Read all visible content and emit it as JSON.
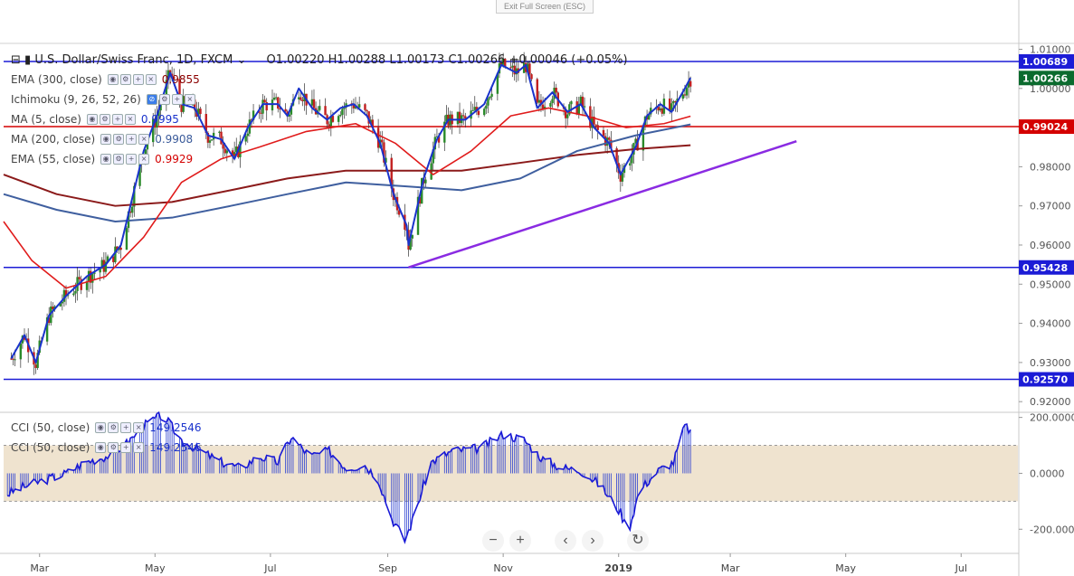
{
  "ui": {
    "exit_fullscreen": "Exit Full Screen (ESC)",
    "symbol": "U.S. Dollar/Swiss Franc, 1D, FXCM",
    "ohlc": {
      "o": "O1.00220",
      "h": "H1.00288",
      "l": "L1.00173",
      "c": "C1.00266",
      "chg": "+0.00046 (+0.05%)"
    },
    "zoom_out": "−",
    "zoom_in": "+",
    "scroll_left": "‹",
    "scroll_right": "›",
    "reset": "↻"
  },
  "indicators": [
    {
      "label": "EMA (300, close)",
      "value": "0.9855",
      "color": "#8b0000"
    },
    {
      "label": "Ichimoku (9, 26, 52, 26)",
      "value": "",
      "color": "#444444"
    },
    {
      "label": "MA (5, close)",
      "value": "0.9995",
      "color": "#1a33cc"
    },
    {
      "label": "MA (200, close)",
      "value": "0.9908",
      "color": "#3a5a9a"
    },
    {
      "label": "EMA (55, close)",
      "value": "0.9929",
      "color": "#d40000"
    }
  ],
  "cci_labels": [
    {
      "label": "CCI (50, close)",
      "value": "149.2546"
    },
    {
      "label": "CCI (50, close)",
      "value": "149.2546"
    }
  ],
  "chart_data": {
    "type": "candlestick",
    "price_axis": {
      "ylim": [
        0.9175,
        1.0115
      ],
      "ticks": [
        "1.01000",
        "1.00000",
        "0.99000",
        "0.98000",
        "0.97000",
        "0.96000",
        "0.95000",
        "0.94000",
        "0.93000",
        "0.92000"
      ]
    },
    "x_axis": {
      "labels": [
        "Mar",
        "May",
        "Jul",
        "Sep",
        "Nov",
        "2019",
        "Mar",
        "May",
        "Jul"
      ]
    },
    "price_labels": [
      {
        "value": 1.00689,
        "text": "1.00689",
        "color": "#1c1cd6"
      },
      {
        "value": 1.00266,
        "text": "1.00266",
        "color": "#0b6b2e"
      },
      {
        "value": 0.99024,
        "text": "0.99024",
        "color": "#d40000"
      },
      {
        "value": 0.95428,
        "text": "0.95428",
        "color": "#1c1cd6"
      },
      {
        "value": 0.9257,
        "text": "0.92570",
        "color": "#1c1cd6"
      }
    ],
    "horizontal_lines": [
      {
        "value": 1.00689,
        "color": "#1c1cd6"
      },
      {
        "value": 0.99024,
        "color": "#d40000"
      },
      {
        "value": 0.95428,
        "color": "#1c1cd6"
      },
      {
        "value": 0.9257,
        "color": "#1c1cd6"
      }
    ],
    "trendline": {
      "from": {
        "date": "2018-09-12",
        "price": 0.9543
      },
      "to": {
        "date": "2019-04-05",
        "price": 0.9865
      },
      "color": "#8a2be2"
    },
    "close_points": [
      [
        "2018-02-14",
        0.931
      ],
      [
        "2018-02-21",
        0.937
      ],
      [
        "2018-02-27",
        0.93
      ],
      [
        "2018-03-06",
        0.942
      ],
      [
        "2018-03-15",
        0.947
      ],
      [
        "2018-03-26",
        0.952
      ],
      [
        "2018-04-05",
        0.955
      ],
      [
        "2018-04-13",
        0.96
      ],
      [
        "2018-04-19",
        0.972
      ],
      [
        "2018-04-25",
        0.984
      ],
      [
        "2018-05-02",
        0.993
      ],
      [
        "2018-05-09",
        1.004
      ],
      [
        "2018-05-15",
        0.996
      ],
      [
        "2018-05-22",
        0.995
      ],
      [
        "2018-05-29",
        0.988
      ],
      [
        "2018-06-05",
        0.987
      ],
      [
        "2018-06-12",
        0.982
      ],
      [
        "2018-06-19",
        0.99
      ],
      [
        "2018-06-27",
        0.996
      ],
      [
        "2018-07-05",
        0.996
      ],
      [
        "2018-07-10",
        0.993
      ],
      [
        "2018-07-16",
        1.0
      ],
      [
        "2018-07-23",
        0.995
      ],
      [
        "2018-07-31",
        0.992
      ],
      [
        "2018-08-07",
        0.995
      ],
      [
        "2018-08-14",
        0.996
      ],
      [
        "2018-08-21",
        0.993
      ],
      [
        "2018-08-28",
        0.986
      ],
      [
        "2018-09-04",
        0.973
      ],
      [
        "2018-09-11",
        0.965
      ],
      [
        "2018-09-12",
        0.96
      ],
      [
        "2018-09-20",
        0.977
      ],
      [
        "2018-09-27",
        0.987
      ],
      [
        "2018-10-03",
        0.992
      ],
      [
        "2018-10-12",
        0.992
      ],
      [
        "2018-10-22",
        0.996
      ],
      [
        "2018-10-31",
        1.006
      ],
      [
        "2018-11-08",
        1.004
      ],
      [
        "2018-11-13",
        1.006
      ],
      [
        "2018-11-19",
        0.995
      ],
      [
        "2018-11-27",
        0.999
      ],
      [
        "2018-12-05",
        0.994
      ],
      [
        "2018-12-12",
        0.996
      ],
      [
        "2018-12-19",
        0.99
      ],
      [
        "2018-12-27",
        0.986
      ],
      [
        "2019-01-02",
        0.978
      ],
      [
        "2019-01-10",
        0.985
      ],
      [
        "2019-01-16",
        0.993
      ],
      [
        "2019-01-23",
        0.996
      ],
      [
        "2019-01-29",
        0.994
      ],
      [
        "2019-02-05",
        1.0
      ],
      [
        "2019-02-08",
        1.0027
      ]
    ],
    "ema55": [
      [
        "2018-02-10",
        0.966
      ],
      [
        "2018-02-25",
        0.956
      ],
      [
        "2018-03-15",
        0.949
      ],
      [
        "2018-04-05",
        0.952
      ],
      [
        "2018-04-25",
        0.962
      ],
      [
        "2018-05-15",
        0.976
      ],
      [
        "2018-06-05",
        0.982
      ],
      [
        "2018-06-25",
        0.985
      ],
      [
        "2018-07-20",
        0.989
      ],
      [
        "2018-08-15",
        0.991
      ],
      [
        "2018-09-05",
        0.986
      ],
      [
        "2018-09-25",
        0.978
      ],
      [
        "2018-10-15",
        0.984
      ],
      [
        "2018-11-05",
        0.993
      ],
      [
        "2018-11-25",
        0.995
      ],
      [
        "2018-12-15",
        0.993
      ],
      [
        "2019-01-05",
        0.99
      ],
      [
        "2019-01-25",
        0.991
      ],
      [
        "2019-02-08",
        0.9929
      ]
    ],
    "ma200": [
      [
        "2018-02-10",
        0.973
      ],
      [
        "2018-03-10",
        0.969
      ],
      [
        "2018-04-10",
        0.966
      ],
      [
        "2018-05-10",
        0.967
      ],
      [
        "2018-06-10",
        0.97
      ],
      [
        "2018-07-10",
        0.973
      ],
      [
        "2018-08-10",
        0.976
      ],
      [
        "2018-09-10",
        0.975
      ],
      [
        "2018-10-10",
        0.974
      ],
      [
        "2018-11-10",
        0.977
      ],
      [
        "2018-12-10",
        0.984
      ],
      [
        "2019-01-10",
        0.988
      ],
      [
        "2019-02-08",
        0.9908
      ]
    ],
    "ema300": [
      [
        "2018-02-10",
        0.978
      ],
      [
        "2018-03-10",
        0.973
      ],
      [
        "2018-04-10",
        0.97
      ],
      [
        "2018-05-10",
        0.971
      ],
      [
        "2018-06-10",
        0.974
      ],
      [
        "2018-07-10",
        0.977
      ],
      [
        "2018-08-10",
        0.979
      ],
      [
        "2018-09-10",
        0.979
      ],
      [
        "2018-10-10",
        0.979
      ],
      [
        "2018-11-10",
        0.981
      ],
      [
        "2018-12-10",
        0.983
      ],
      [
        "2019-01-10",
        0.9845
      ],
      [
        "2019-02-08",
        0.9855
      ]
    ],
    "cci": {
      "ylim": [
        -280,
        215
      ],
      "ticks": [
        "200.0000",
        "0.0000",
        "-200.0000"
      ],
      "band": [
        -100,
        100
      ],
      "points": [
        [
          "2018-02-10",
          -80
        ],
        [
          "2018-02-20",
          -50
        ],
        [
          "2018-03-01",
          -30
        ],
        [
          "2018-03-15",
          0
        ],
        [
          "2018-03-25",
          40
        ],
        [
          "2018-04-05",
          60
        ],
        [
          "2018-04-15",
          100
        ],
        [
          "2018-04-25",
          170
        ],
        [
          "2018-05-05",
          210
        ],
        [
          "2018-05-15",
          120
        ],
        [
          "2018-05-25",
          80
        ],
        [
          "2018-06-05",
          40
        ],
        [
          "2018-06-15",
          20
        ],
        [
          "2018-06-25",
          60
        ],
        [
          "2018-07-05",
          40
        ],
        [
          "2018-07-12",
          130
        ],
        [
          "2018-07-22",
          60
        ],
        [
          "2018-08-01",
          80
        ],
        [
          "2018-08-10",
          20
        ],
        [
          "2018-08-20",
          30
        ],
        [
          "2018-08-27",
          -20
        ],
        [
          "2018-09-03",
          -160
        ],
        [
          "2018-09-10",
          -240
        ],
        [
          "2018-09-14",
          -170
        ],
        [
          "2018-09-24",
          40
        ],
        [
          "2018-10-05",
          80
        ],
        [
          "2018-10-20",
          90
        ],
        [
          "2018-11-01",
          140
        ],
        [
          "2018-11-12",
          120
        ],
        [
          "2018-11-22",
          50
        ],
        [
          "2018-12-02",
          20
        ],
        [
          "2018-12-12",
          10
        ],
        [
          "2018-12-22",
          -40
        ],
        [
          "2019-01-02",
          -140
        ],
        [
          "2019-01-06",
          -210
        ],
        [
          "2019-01-12",
          -60
        ],
        [
          "2019-01-22",
          10
        ],
        [
          "2019-01-30",
          40
        ],
        [
          "2019-02-05",
          170
        ],
        [
          "2019-02-08",
          150
        ]
      ]
    }
  }
}
